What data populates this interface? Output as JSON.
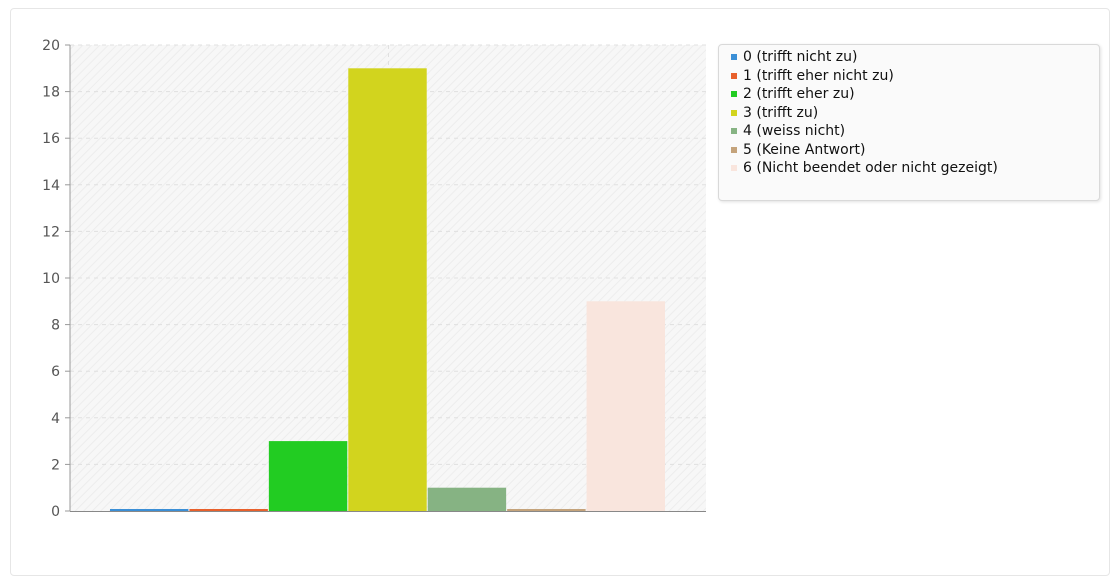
{
  "chart_data": {
    "type": "bar",
    "categories": [
      "0 (trifft nicht zu)",
      "1 (trifft eher nicht zu)",
      "2 (trifft eher zu)",
      "3 (trifft zu)",
      "4 (weiss nicht)",
      "5 (Keine Antwort)",
      "6 (Nicht beendet oder nicht gezeigt)"
    ],
    "values": [
      0,
      0,
      3,
      19,
      1,
      0,
      9
    ],
    "colors": [
      "#3b8fd6",
      "#e8602c",
      "#22cc22",
      "#d2d41e",
      "#86b383",
      "#c4a37b",
      "#f9e5dd"
    ],
    "title": "",
    "xlabel": "",
    "ylabel": "",
    "ylim": [
      0,
      20
    ],
    "yticks": [
      "0",
      "2",
      "4",
      "6",
      "8",
      "10",
      "12",
      "14",
      "16",
      "18",
      "20"
    ],
    "grid": true,
    "legend_position": "right"
  }
}
